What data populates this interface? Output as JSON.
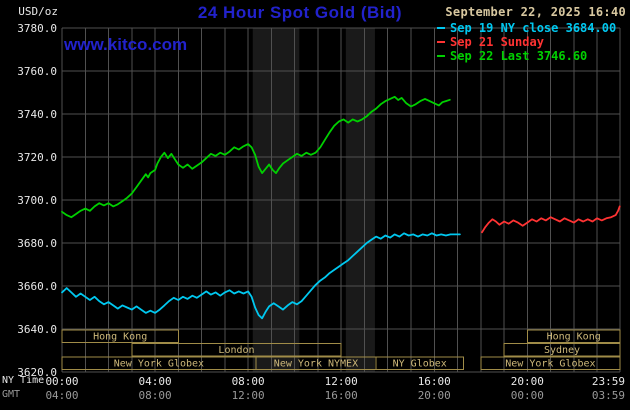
{
  "header": {
    "unit": "USD/oz",
    "title": "24 Hour Spot Gold (Bid)",
    "date": "September 22, 2025 16:40",
    "watermark": "www.kitco.com"
  },
  "axis": {
    "ny_time_label": "NY Time",
    "gmt_label": "GMT"
  },
  "colors": {
    "background": "#000000",
    "title_blue": "#2222cc",
    "date_tan": "#d8c8a0",
    "grid": "#505050",
    "axis_text": "#e8e8e8",
    "gmt_text": "#999999",
    "session_text": "#cdb87a",
    "session_border": "#a08c48",
    "band": "#1a1a1a"
  },
  "legend": {
    "items": [
      {
        "id": "sep19",
        "label": "Sep 19 NY close 3684.00",
        "color": "#00c8f0"
      },
      {
        "id": "sep21",
        "label": "Sep 21 Sunday",
        "color": "#ff3333"
      },
      {
        "id": "sep22",
        "label": "Sep 22 Last 3746.60",
        "color": "#00d000"
      }
    ]
  },
  "chart_data": {
    "type": "line",
    "title": "24 Hour Spot Gold (Bid)",
    "ylabel": "USD/oz",
    "ylim": [
      3620,
      3780
    ],
    "yticks": [
      3620,
      3640,
      3660,
      3680,
      3700,
      3720,
      3740,
      3760,
      3780
    ],
    "ytick_labels": [
      "3620.0",
      "3640.0",
      "3660.0",
      "3680.0",
      "3700.0",
      "3720.0",
      "3740.0",
      "3760.0",
      "3780.0"
    ],
    "xlim_hours": [
      0,
      23.9833
    ],
    "xticks": [
      {
        "hour": 0,
        "ny": "00:00",
        "gmt": "04:00"
      },
      {
        "hour": 4,
        "ny": "04:00",
        "gmt": "08:00"
      },
      {
        "hour": 8,
        "ny": "08:00",
        "gmt": "12:00"
      },
      {
        "hour": 12,
        "ny": "12:00",
        "gmt": "16:00"
      },
      {
        "hour": 16,
        "ny": "16:00",
        "gmt": "20:00"
      },
      {
        "hour": 20,
        "ny": "20:00",
        "gmt": "00:00"
      },
      {
        "hour": 23.9833,
        "ny": "23:59",
        "gmt": "03:59"
      }
    ],
    "grid": true,
    "legend_position": "top-right",
    "bands": [
      {
        "from_hour": 8.2,
        "to_hour": 10.2
      },
      {
        "from_hour": 12.2,
        "to_hour": 13.45
      }
    ],
    "series": [
      {
        "id": "sep19",
        "name": "Sep 19 NY close",
        "close": 3684.0,
        "color": "#00c8f0",
        "points": [
          [
            0,
            3657
          ],
          [
            0.2,
            3659
          ],
          [
            0.4,
            3657
          ],
          [
            0.6,
            3655
          ],
          [
            0.8,
            3656.5
          ],
          [
            1,
            3655
          ],
          [
            1.2,
            3653.5
          ],
          [
            1.4,
            3655
          ],
          [
            1.6,
            3653
          ],
          [
            1.8,
            3651.5
          ],
          [
            2,
            3652.5
          ],
          [
            2.2,
            3651
          ],
          [
            2.4,
            3649.5
          ],
          [
            2.6,
            3651
          ],
          [
            2.8,
            3650
          ],
          [
            3,
            3649
          ],
          [
            3.2,
            3650.5
          ],
          [
            3.4,
            3649
          ],
          [
            3.6,
            3647.5
          ],
          [
            3.8,
            3648.5
          ],
          [
            4,
            3647.5
          ],
          [
            4.2,
            3649
          ],
          [
            4.4,
            3651
          ],
          [
            4.6,
            3653
          ],
          [
            4.8,
            3654.5
          ],
          [
            5,
            3653.5
          ],
          [
            5.2,
            3655
          ],
          [
            5.4,
            3654
          ],
          [
            5.6,
            3655.5
          ],
          [
            5.8,
            3654.5
          ],
          [
            6,
            3656
          ],
          [
            6.2,
            3657.5
          ],
          [
            6.4,
            3656
          ],
          [
            6.6,
            3657
          ],
          [
            6.8,
            3655.5
          ],
          [
            7,
            3657
          ],
          [
            7.2,
            3658
          ],
          [
            7.4,
            3656.5
          ],
          [
            7.6,
            3657.5
          ],
          [
            7.8,
            3656.5
          ],
          [
            8,
            3657.5
          ],
          [
            8.15,
            3655
          ],
          [
            8.3,
            3650
          ],
          [
            8.45,
            3646.5
          ],
          [
            8.6,
            3645
          ],
          [
            8.75,
            3648
          ],
          [
            8.9,
            3650.5
          ],
          [
            9.1,
            3652
          ],
          [
            9.3,
            3650.5
          ],
          [
            9.5,
            3649
          ],
          [
            9.7,
            3651
          ],
          [
            9.9,
            3652.5
          ],
          [
            10.1,
            3651.5
          ],
          [
            10.3,
            3653
          ],
          [
            10.5,
            3655.5
          ],
          [
            10.7,
            3658
          ],
          [
            10.9,
            3660.5
          ],
          [
            11.1,
            3662.5
          ],
          [
            11.3,
            3664
          ],
          [
            11.5,
            3666
          ],
          [
            11.7,
            3667.5
          ],
          [
            11.9,
            3669
          ],
          [
            12.1,
            3670.5
          ],
          [
            12.3,
            3672
          ],
          [
            12.5,
            3674
          ],
          [
            12.7,
            3676
          ],
          [
            12.9,
            3678
          ],
          [
            13.1,
            3680
          ],
          [
            13.3,
            3681.5
          ],
          [
            13.5,
            3683
          ],
          [
            13.7,
            3682
          ],
          [
            13.9,
            3683.5
          ],
          [
            14.1,
            3682.5
          ],
          [
            14.3,
            3684
          ],
          [
            14.5,
            3683
          ],
          [
            14.7,
            3684.5
          ],
          [
            14.9,
            3683.5
          ],
          [
            15.1,
            3684
          ],
          [
            15.3,
            3683
          ],
          [
            15.5,
            3684
          ],
          [
            15.7,
            3683.5
          ],
          [
            15.9,
            3684.5
          ],
          [
            16.1,
            3683.5
          ],
          [
            16.3,
            3684
          ],
          [
            16.5,
            3683.5
          ],
          [
            16.7,
            3684
          ],
          [
            16.9,
            3684
          ],
          [
            17.1,
            3684
          ]
        ]
      },
      {
        "id": "sep21",
        "name": "Sep 21 Sunday",
        "color": "#ff3333",
        "points": [
          [
            18.05,
            3685
          ],
          [
            18.2,
            3687.5
          ],
          [
            18.35,
            3689.5
          ],
          [
            18.5,
            3691
          ],
          [
            18.65,
            3690
          ],
          [
            18.8,
            3688.5
          ],
          [
            19,
            3690
          ],
          [
            19.2,
            3689
          ],
          [
            19.4,
            3690.5
          ],
          [
            19.6,
            3689.5
          ],
          [
            19.8,
            3688
          ],
          [
            20,
            3689.5
          ],
          [
            20.2,
            3691
          ],
          [
            20.4,
            3690
          ],
          [
            20.6,
            3691.5
          ],
          [
            20.8,
            3690.5
          ],
          [
            21,
            3692
          ],
          [
            21.2,
            3691
          ],
          [
            21.4,
            3690
          ],
          [
            21.6,
            3691.5
          ],
          [
            21.8,
            3690.5
          ],
          [
            22,
            3689.5
          ],
          [
            22.2,
            3691
          ],
          [
            22.4,
            3690
          ],
          [
            22.6,
            3691
          ],
          [
            22.8,
            3690
          ],
          [
            23,
            3691.5
          ],
          [
            23.2,
            3690.5
          ],
          [
            23.4,
            3691.5
          ],
          [
            23.6,
            3692
          ],
          [
            23.8,
            3693
          ],
          [
            23.9,
            3695
          ],
          [
            23.97,
            3697
          ]
        ]
      },
      {
        "id": "sep22",
        "name": "Sep 22",
        "last": 3746.6,
        "color": "#00d000",
        "points": [
          [
            0,
            3694.5
          ],
          [
            0.2,
            3693
          ],
          [
            0.4,
            3692
          ],
          [
            0.6,
            3693.5
          ],
          [
            0.8,
            3695
          ],
          [
            1,
            3696
          ],
          [
            1.2,
            3695
          ],
          [
            1.4,
            3697
          ],
          [
            1.6,
            3698.5
          ],
          [
            1.8,
            3697.5
          ],
          [
            2,
            3698.5
          ],
          [
            2.2,
            3697
          ],
          [
            2.4,
            3698
          ],
          [
            2.6,
            3699.5
          ],
          [
            2.8,
            3701
          ],
          [
            3,
            3703
          ],
          [
            3.2,
            3706
          ],
          [
            3.4,
            3709
          ],
          [
            3.6,
            3712
          ],
          [
            3.7,
            3710.5
          ],
          [
            3.8,
            3712.5
          ],
          [
            4,
            3714
          ],
          [
            4.1,
            3717
          ],
          [
            4.25,
            3720
          ],
          [
            4.4,
            3722
          ],
          [
            4.55,
            3719.5
          ],
          [
            4.7,
            3721.5
          ],
          [
            4.85,
            3719
          ],
          [
            5,
            3716.5
          ],
          [
            5.2,
            3715
          ],
          [
            5.4,
            3716.5
          ],
          [
            5.6,
            3714.5
          ],
          [
            5.8,
            3716
          ],
          [
            6,
            3717.5
          ],
          [
            6.2,
            3719.5
          ],
          [
            6.4,
            3721.5
          ],
          [
            6.6,
            3720.5
          ],
          [
            6.8,
            3722
          ],
          [
            7,
            3721
          ],
          [
            7.2,
            3722.5
          ],
          [
            7.4,
            3724.5
          ],
          [
            7.6,
            3723.5
          ],
          [
            7.8,
            3725
          ],
          [
            8,
            3726
          ],
          [
            8.15,
            3724.5
          ],
          [
            8.3,
            3721
          ],
          [
            8.45,
            3715.5
          ],
          [
            8.6,
            3712.5
          ],
          [
            8.75,
            3714.5
          ],
          [
            8.9,
            3716.5
          ],
          [
            9.05,
            3714
          ],
          [
            9.2,
            3712.5
          ],
          [
            9.35,
            3715
          ],
          [
            9.5,
            3717
          ],
          [
            9.7,
            3718.5
          ],
          [
            9.9,
            3720
          ],
          [
            10.1,
            3721.5
          ],
          [
            10.3,
            3720.5
          ],
          [
            10.5,
            3722
          ],
          [
            10.7,
            3721
          ],
          [
            10.9,
            3722
          ],
          [
            11.1,
            3724.5
          ],
          [
            11.3,
            3728
          ],
          [
            11.5,
            3731.5
          ],
          [
            11.7,
            3734.5
          ],
          [
            11.9,
            3736.5
          ],
          [
            12.1,
            3737.5
          ],
          [
            12.3,
            3736
          ],
          [
            12.5,
            3737.5
          ],
          [
            12.7,
            3736.5
          ],
          [
            12.9,
            3737.5
          ],
          [
            13.1,
            3739
          ],
          [
            13.3,
            3741
          ],
          [
            13.5,
            3742.5
          ],
          [
            13.7,
            3744.5
          ],
          [
            13.9,
            3746
          ],
          [
            14.1,
            3747
          ],
          [
            14.3,
            3748
          ],
          [
            14.45,
            3746.5
          ],
          [
            14.6,
            3747.5
          ],
          [
            14.8,
            3745
          ],
          [
            15,
            3743.5
          ],
          [
            15.2,
            3744.5
          ],
          [
            15.4,
            3746
          ],
          [
            15.6,
            3747
          ],
          [
            15.8,
            3746
          ],
          [
            16,
            3745
          ],
          [
            16.2,
            3744
          ],
          [
            16.35,
            3745.5
          ],
          [
            16.5,
            3746
          ],
          [
            16.67,
            3746.6
          ]
        ]
      }
    ],
    "sessions": [
      {
        "row": 0,
        "label": "Hong Kong",
        "from_hour": 0,
        "to_hour": 5
      },
      {
        "row": 0,
        "label": "Hong Kong",
        "from_hour": 20,
        "to_hour": 23.983
      },
      {
        "row": 1,
        "label": "London",
        "from_hour": 3,
        "to_hour": 12
      },
      {
        "row": 1,
        "label": "Sydney",
        "from_hour": 19,
        "to_hour": 23.983
      },
      {
        "row": 2,
        "label": "New York Globex",
        "from_hour": 0,
        "to_hour": 8.33
      },
      {
        "row": 2,
        "label": "New York NYMEX",
        "from_hour": 8.33,
        "to_hour": 13.5
      },
      {
        "row": 2,
        "label": "NY Globex",
        "from_hour": 13.5,
        "to_hour": 17.25
      },
      {
        "row": 2,
        "label": "New York Globex",
        "from_hour": 18,
        "to_hour": 23.983
      }
    ]
  }
}
